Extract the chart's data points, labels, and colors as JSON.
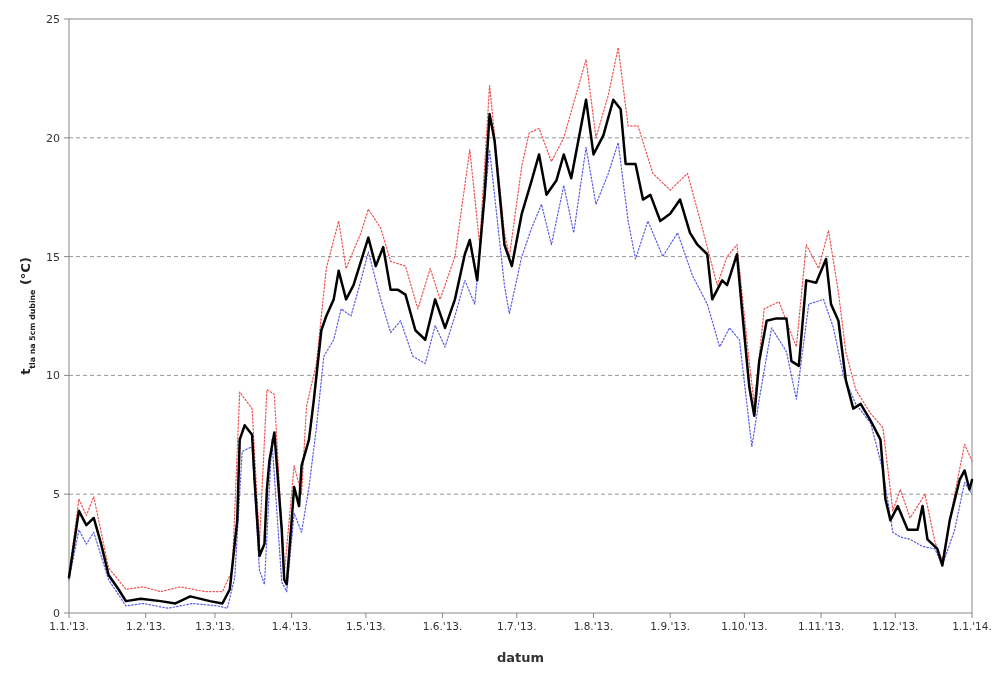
{
  "chart_data": {
    "type": "line",
    "xlabel": "datum",
    "ylabel": "t$_{tla na 5cm dubine}$ (°C)",
    "xlim": [
      "2013-01-01",
      "2014-01-01"
    ],
    "ylim": [
      0,
      25
    ],
    "yticks": [
      0,
      5,
      10,
      15,
      20,
      25
    ],
    "xticks": [
      {
        "value": "2013-01-01",
        "label": "1.1.'13."
      },
      {
        "value": "2013-02-01",
        "label": "1.2.'13."
      },
      {
        "value": "2013-03-01",
        "label": "1.3.'13."
      },
      {
        "value": "2013-04-01",
        "label": "1.4.'13."
      },
      {
        "value": "2013-05-01",
        "label": "1.5.'13."
      },
      {
        "value": "2013-06-01",
        "label": "1.6.'13."
      },
      {
        "value": "2013-07-01",
        "label": "1.7.'13."
      },
      {
        "value": "2013-08-01",
        "label": "1.8.'13."
      },
      {
        "value": "2013-09-01",
        "label": "1.9.'13."
      },
      {
        "value": "2013-10-01",
        "label": "1.10.'13."
      },
      {
        "value": "2013-11-01",
        "label": "1.11.'13."
      },
      {
        "value": "2013-12-01",
        "label": "1.12.'13."
      },
      {
        "value": "2014-01-01",
        "label": "1.1.'14."
      }
    ],
    "grid": "y",
    "marker": "none",
    "series": [
      {
        "color": "#f05050",
        "line_style": "dotted",
        "x": [
          "2013-01-01",
          "2013-01-05",
          "2013-01-08",
          "2013-01-11",
          "2013-01-17",
          "2013-01-24",
          "2013-01-31",
          "2013-02-07",
          "2013-02-15",
          "2013-02-25",
          "2013-03-04",
          "2013-03-08",
          "2013-03-11",
          "2013-03-16",
          "2013-03-19",
          "2013-03-22",
          "2013-03-25",
          "2013-03-29",
          "2013-04-02",
          "2013-04-05",
          "2013-04-07",
          "2013-04-11",
          "2013-04-15",
          "2013-04-20",
          "2013-04-23",
          "2013-04-29",
          "2013-05-02",
          "2013-05-07",
          "2013-05-11",
          "2013-05-17",
          "2013-05-22",
          "2013-05-27",
          "2013-05-31",
          "2013-06-06",
          "2013-06-12",
          "2013-06-16",
          "2013-06-20",
          "2013-06-26",
          "2013-06-28",
          "2013-07-03",
          "2013-07-06",
          "2013-07-10",
          "2013-07-15",
          "2013-07-20",
          "2013-07-29",
          "2013-08-02",
          "2013-08-07",
          "2013-08-11",
          "2013-08-15",
          "2013-08-19",
          "2013-08-25",
          "2013-09-01",
          "2013-09-08",
          "2013-09-14",
          "2013-09-20",
          "2013-09-24",
          "2013-09-28",
          "2013-10-03",
          "2013-10-05",
          "2013-10-09",
          "2013-10-15",
          "2013-10-19",
          "2013-10-22",
          "2013-10-26",
          "2013-10-31",
          "2013-11-04",
          "2013-11-08",
          "2013-11-11",
          "2013-11-15",
          "2013-11-21",
          "2013-11-26",
          "2013-11-30",
          "2013-12-03",
          "2013-12-07",
          "2013-12-13",
          "2013-12-17",
          "2013-12-20",
          "2013-12-25",
          "2013-12-29",
          "2014-01-01"
        ],
        "values": [
          1.6,
          4.8,
          4.1,
          4.9,
          1.9,
          1.0,
          1.1,
          0.9,
          1.1,
          0.9,
          0.9,
          1.8,
          9.3,
          8.6,
          3.0,
          9.4,
          9.2,
          1.6,
          6.2,
          5.0,
          8.7,
          10.5,
          14.5,
          16.5,
          14.5,
          16.0,
          17.0,
          16.2,
          14.8,
          14.6,
          12.8,
          14.5,
          13.2,
          15.0,
          19.5,
          15.5,
          22.2,
          16.0,
          15.0,
          18.8,
          20.2,
          20.4,
          19.0,
          20.0,
          23.3,
          20.0,
          21.8,
          23.8,
          20.5,
          20.5,
          18.5,
          17.8,
          18.5,
          16.2,
          13.8,
          15.0,
          15.5,
          10.5,
          8.8,
          12.8,
          13.1,
          12.0,
          11.2,
          15.5,
          14.5,
          16.1,
          13.5,
          11.0,
          9.4,
          8.4,
          7.8,
          4.3,
          5.2,
          4.0,
          5.0,
          3.0,
          2.2,
          5.0,
          7.1,
          6.4
        ]
      },
      {
        "color": "#5a5ae6",
        "line_style": "dotted",
        "x": [
          "2013-01-01",
          "2013-01-05",
          "2013-01-08",
          "2013-01-11",
          "2013-01-17",
          "2013-01-24",
          "2013-01-31",
          "2013-02-10",
          "2013-02-20",
          "2013-03-02",
          "2013-03-06",
          "2013-03-09",
          "2013-03-12",
          "2013-03-16",
          "2013-03-19",
          "2013-03-21",
          "2013-03-24",
          "2013-03-28",
          "2013-03-30",
          "2013-04-02",
          "2013-04-05",
          "2013-04-08",
          "2013-04-11",
          "2013-04-14",
          "2013-04-18",
          "2013-04-21",
          "2013-04-25",
          "2013-04-29",
          "2013-05-02",
          "2013-05-07",
          "2013-05-11",
          "2013-05-15",
          "2013-05-20",
          "2013-05-25",
          "2013-05-29",
          "2013-06-02",
          "2013-06-06",
          "2013-06-10",
          "2013-06-14",
          "2013-06-20",
          "2013-06-26",
          "2013-06-28",
          "2013-07-03",
          "2013-07-07",
          "2013-07-11",
          "2013-07-15",
          "2013-07-20",
          "2013-07-24",
          "2013-07-29",
          "2013-08-02",
          "2013-08-07",
          "2013-08-11",
          "2013-08-15",
          "2013-08-18",
          "2013-08-23",
          "2013-08-29",
          "2013-09-04",
          "2013-09-10",
          "2013-09-16",
          "2013-09-21",
          "2013-09-25",
          "2013-09-29",
          "2013-10-04",
          "2013-10-07",
          "2013-10-12",
          "2013-10-18",
          "2013-10-22",
          "2013-10-27",
          "2013-11-02",
          "2013-11-06",
          "2013-11-10",
          "2013-11-15",
          "2013-11-21",
          "2013-11-26",
          "2013-11-30",
          "2013-12-03",
          "2013-12-07",
          "2013-12-12",
          "2013-12-17",
          "2013-12-20",
          "2013-12-25",
          "2013-12-29",
          "2014-01-01"
        ],
        "values": [
          1.4,
          3.5,
          2.9,
          3.4,
          1.4,
          0.3,
          0.4,
          0.2,
          0.4,
          0.3,
          0.2,
          1.5,
          6.8,
          7.0,
          1.8,
          1.2,
          7.3,
          1.3,
          0.9,
          4.2,
          3.4,
          5.3,
          7.8,
          10.8,
          11.5,
          12.8,
          12.5,
          14.0,
          15.2,
          13.2,
          11.8,
          12.3,
          10.8,
          10.5,
          12.1,
          11.2,
          12.5,
          14.0,
          13.0,
          19.5,
          13.8,
          12.6,
          15.0,
          16.2,
          17.2,
          15.5,
          18.0,
          16.0,
          19.6,
          17.2,
          18.5,
          19.8,
          16.5,
          14.9,
          16.5,
          15.0,
          16.0,
          14.2,
          13.0,
          11.2,
          12.0,
          11.5,
          7.0,
          9.0,
          12.0,
          11.0,
          9.0,
          13.0,
          13.2,
          12.0,
          10.0,
          8.8,
          8.0,
          6.0,
          3.4,
          3.2,
          3.1,
          2.8,
          2.7,
          2.0,
          3.5,
          5.5,
          5.0
        ]
      },
      {
        "color": "#000000",
        "line_style": "solid",
        "x": [
          "2013-01-01",
          "2013-01-05",
          "2013-01-08",
          "2013-01-11",
          "2013-01-14",
          "2013-01-17",
          "2013-01-21",
          "2013-01-24",
          "2013-01-30",
          "2013-02-07",
          "2013-02-13",
          "2013-02-19",
          "2013-02-27",
          "2013-03-04",
          "2013-03-07",
          "2013-03-10",
          "2013-03-11",
          "2013-03-13",
          "2013-03-16",
          "2013-03-17",
          "2013-03-19",
          "2013-03-21",
          "2013-03-22",
          "2013-03-23",
          "2013-03-25",
          "2013-03-28",
          "2013-03-29",
          "2013-03-30",
          "2013-04-01",
          "2013-04-02",
          "2013-04-04",
          "2013-04-05",
          "2013-04-08",
          "2013-04-10",
          "2013-04-13",
          "2013-04-15",
          "2013-04-18",
          "2013-04-20",
          "2013-04-23",
          "2013-04-26",
          "2013-04-29",
          "2013-05-02",
          "2013-05-05",
          "2013-05-08",
          "2013-05-11",
          "2013-05-14",
          "2013-05-17",
          "2013-05-21",
          "2013-05-25",
          "2013-05-29",
          "2013-06-02",
          "2013-06-06",
          "2013-06-10",
          "2013-06-12",
          "2013-06-15",
          "2013-06-18",
          "2013-06-20",
          "2013-06-22",
          "2013-06-26",
          "2013-06-29",
          "2013-07-03",
          "2013-07-07",
          "2013-07-10",
          "2013-07-13",
          "2013-07-17",
          "2013-07-20",
          "2013-07-23",
          "2013-07-29",
          "2013-08-01",
          "2013-08-05",
          "2013-08-09",
          "2013-08-12",
          "2013-08-14",
          "2013-08-18",
          "2013-08-21",
          "2013-08-24",
          "2013-08-28",
          "2013-09-01",
          "2013-09-05",
          "2013-09-09",
          "2013-09-12",
          "2013-09-16",
          "2013-09-18",
          "2013-09-22",
          "2013-09-24",
          "2013-09-28",
          "2013-09-30",
          "2013-10-03",
          "2013-10-05",
          "2013-10-07",
          "2013-10-10",
          "2013-10-14",
          "2013-10-18",
          "2013-10-20",
          "2013-10-23",
          "2013-10-26",
          "2013-10-30",
          "2013-11-03",
          "2013-11-05",
          "2013-11-08",
          "2013-11-11",
          "2013-11-14",
          "2013-11-17",
          "2013-11-21",
          "2013-11-25",
          "2013-11-27",
          "2013-11-29",
          "2013-12-02",
          "2013-12-06",
          "2013-12-10",
          "2013-12-12",
          "2013-12-14",
          "2013-12-18",
          "2013-12-20",
          "2013-12-23",
          "2013-12-27",
          "2013-12-29",
          "2013-12-31",
          "2014-01-01"
        ],
        "values": [
          1.5,
          4.3,
          3.7,
          4.0,
          2.9,
          1.6,
          1.0,
          0.5,
          0.6,
          0.5,
          0.4,
          0.7,
          0.5,
          0.4,
          1.0,
          3.9,
          7.3,
          7.9,
          7.5,
          5.6,
          2.4,
          2.9,
          5.2,
          6.4,
          7.6,
          3.5,
          1.4,
          1.2,
          3.9,
          5.3,
          4.5,
          6.2,
          7.3,
          9.0,
          11.9,
          12.5,
          13.2,
          14.4,
          13.2,
          13.8,
          14.8,
          15.8,
          14.6,
          15.4,
          13.6,
          13.6,
          13.4,
          11.9,
          11.5,
          13.2,
          12.0,
          13.2,
          15.1,
          15.7,
          14.0,
          17.6,
          21.0,
          19.9,
          15.5,
          14.6,
          16.8,
          18.2,
          19.3,
          17.6,
          18.2,
          19.3,
          18.3,
          21.6,
          19.3,
          20.1,
          21.6,
          21.2,
          18.9,
          18.9,
          17.4,
          17.6,
          16.5,
          16.8,
          17.4,
          16.0,
          15.5,
          15.1,
          13.2,
          14.0,
          13.8,
          15.1,
          12.8,
          9.5,
          8.3,
          10.6,
          12.3,
          12.4,
          12.4,
          10.6,
          10.4,
          14.0,
          13.9,
          14.9,
          13.0,
          12.3,
          9.8,
          8.6,
          8.8,
          8.1,
          7.3,
          4.8,
          3.9,
          4.5,
          3.5,
          3.5,
          4.5,
          3.1,
          2.7,
          2.0,
          3.9,
          5.6,
          6.0,
          5.2,
          5.6
        ]
      }
    ]
  }
}
